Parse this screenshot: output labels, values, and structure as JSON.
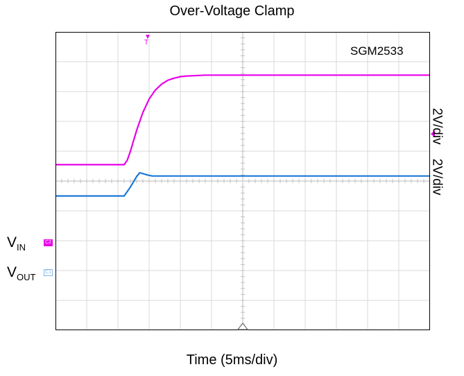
{
  "chart_data": {
    "type": "line",
    "title": "Over-Voltage Clamp",
    "xlabel": "Time (5ms/div)",
    "model": "SGM2533",
    "xlim": [
      0,
      60
    ],
    "ylim": [
      0,
      10
    ],
    "grid": true,
    "series": [
      {
        "name": "VIN",
        "scale": "2V/div",
        "color": "#e800e8",
        "x": [
          0,
          11,
          11.5,
          12,
          13,
          14,
          15,
          16,
          17,
          18,
          19,
          20,
          21,
          22,
          24,
          26,
          30,
          60
        ],
        "y": [
          5.55,
          5.55,
          5.7,
          6.0,
          6.7,
          7.3,
          7.75,
          8.05,
          8.25,
          8.38,
          8.45,
          8.5,
          8.52,
          8.53,
          8.55,
          8.55,
          8.55,
          8.55
        ]
      },
      {
        "name": "VOUT",
        "scale": "2V/div",
        "color": "#1a78d8",
        "x": [
          0,
          11,
          12,
          13,
          13.5,
          14,
          14.8,
          15.5,
          16,
          20,
          60
        ],
        "y": [
          4.5,
          4.5,
          4.8,
          5.15,
          5.28,
          5.25,
          5.2,
          5.17,
          5.17,
          5.17,
          5.17
        ]
      }
    ]
  },
  "labels": {
    "vin_main": "V",
    "vin_sub": "IN",
    "vout_main": "V",
    "vout_sub": "OUT",
    "vin_marker": "C2",
    "vout_marker": "C1"
  }
}
